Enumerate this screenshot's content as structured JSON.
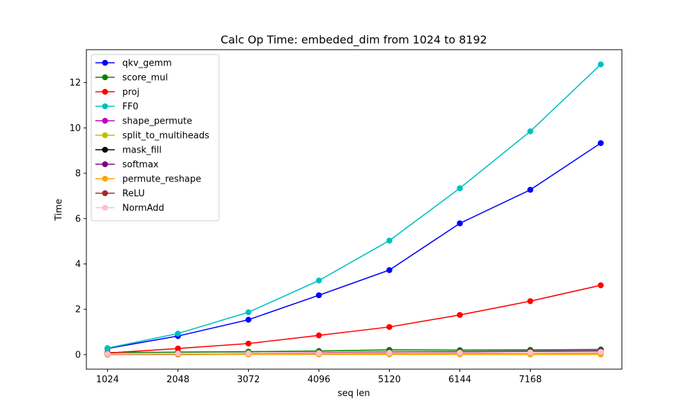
{
  "chart_data": {
    "type": "line",
    "title": "Calc Op Time: embeded_dim from 1024 to 8192",
    "xlabel": "seq len",
    "ylabel": "Time",
    "x": [
      1024,
      2048,
      3072,
      4096,
      5120,
      6144,
      7168,
      8192
    ],
    "x_ticks": [
      1024,
      2048,
      3072,
      4096,
      5120,
      6144,
      7168
    ],
    "x_tick_labels": [
      "1024",
      "2048",
      "3072",
      "4096",
      "5120",
      "6144",
      "7168"
    ],
    "xlim": [
      717,
      8499
    ],
    "y_ticks": [
      0,
      2,
      4,
      6,
      8,
      10,
      12
    ],
    "y_tick_labels": [
      "0",
      "2",
      "4",
      "6",
      "8",
      "10",
      "12"
    ],
    "ylim": [
      -0.64,
      13.45
    ],
    "grid": false,
    "legend_position": "upper-left",
    "series": [
      {
        "name": "qkv_gemm",
        "color": "#0000ff",
        "values": [
          0.27,
          0.82,
          1.54,
          2.62,
          3.73,
          5.79,
          7.27,
          9.33
        ]
      },
      {
        "name": "score_mul",
        "color": "#008000",
        "values": [
          0.09,
          0.11,
          0.13,
          0.16,
          0.21,
          0.2,
          0.21,
          0.23
        ]
      },
      {
        "name": "proj",
        "color": "#ff0000",
        "values": [
          0.07,
          0.27,
          0.49,
          0.85,
          1.22,
          1.75,
          2.36,
          3.06
        ]
      },
      {
        "name": "FF0",
        "color": "#00bfbf",
        "values": [
          0.29,
          0.93,
          1.87,
          3.27,
          5.03,
          7.34,
          9.85,
          12.8
        ]
      },
      {
        "name": "shape_permute",
        "color": "#bf00bf",
        "values": [
          0.01,
          0.02,
          0.03,
          0.05,
          0.07,
          0.08,
          0.1,
          0.11
        ]
      },
      {
        "name": "split_to_multiheads",
        "color": "#bfbf00",
        "values": [
          0.01,
          0.01,
          0.02,
          0.02,
          0.03,
          0.03,
          0.04,
          0.05
        ]
      },
      {
        "name": "mask_fill",
        "color": "#000000",
        "values": [
          0.01,
          0.02,
          0.04,
          0.06,
          0.08,
          0.09,
          0.11,
          0.12
        ]
      },
      {
        "name": "softmax",
        "color": "#800080",
        "values": [
          0.02,
          0.04,
          0.06,
          0.09,
          0.12,
          0.13,
          0.15,
          0.17
        ]
      },
      {
        "name": "permute_reshape",
        "color": "#ffa500",
        "values": [
          0.0,
          0.0,
          0.01,
          0.01,
          0.01,
          0.01,
          0.01,
          0.01
        ]
      },
      {
        "name": "ReLU",
        "color": "#a52a2a",
        "values": [
          0.02,
          0.04,
          0.06,
          0.08,
          0.1,
          0.11,
          0.12,
          0.13
        ]
      },
      {
        "name": "NormAdd",
        "color": "#ffc0cb",
        "values": [
          0.03,
          0.05,
          0.06,
          0.07,
          0.08,
          0.09,
          0.1,
          0.12
        ]
      }
    ]
  }
}
